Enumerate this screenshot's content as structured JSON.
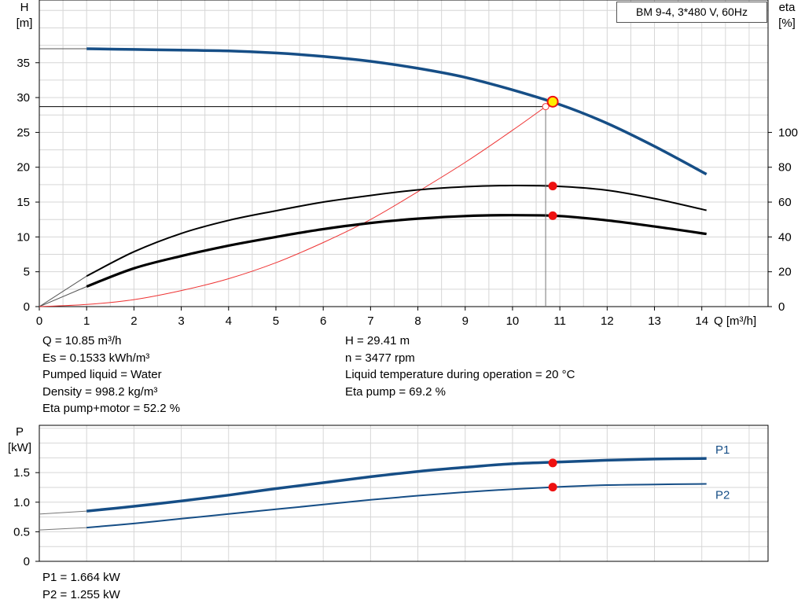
{
  "header": {
    "title": "BM 9-4, 3*480 V, 60Hz"
  },
  "colors": {
    "curve": "#164e86",
    "duty_point": "#ee1111",
    "duty_point_main": "#ffee00",
    "efficiency": "#000000",
    "es_curve": "#ee3333"
  },
  "main_info": {
    "left": [
      "Q = 10.85 m³/h",
      "Es = 0.1533 kWh/m³",
      "Pumped liquid = Water",
      "Density = 998.2 kg/m³",
      "Eta pump+motor = 52.2 %"
    ],
    "right": [
      "H = 29.41 m",
      "n = 3477 rpm",
      "Liquid temperature during operation = 20 °C",
      "Eta pump = 69.2 %"
    ]
  },
  "power_info": [
    "P1 = 1.664 kW",
    "P2 = 1.255 kW"
  ],
  "chart_data": [
    {
      "type": "line",
      "title": "BM 9-4, 3*480 V, 60Hz",
      "xlabel": "Q [m³/h]",
      "ylabel": "H\n[m]",
      "y2label": "eta\n[%]",
      "xlim": [
        0,
        15.4
      ],
      "ylim": [
        0,
        44
      ],
      "y2lim": [
        0,
        176
      ],
      "x_ticks": [
        0,
        1,
        2,
        3,
        4,
        5,
        6,
        7,
        8,
        9,
        10,
        11,
        12,
        13,
        14
      ],
      "y_ticks": [
        0,
        5,
        10,
        15,
        20,
        25,
        30,
        35
      ],
      "y2_ticks": [
        0,
        20,
        40,
        60,
        80,
        100
      ],
      "grid": true,
      "series": [
        {
          "axis": "left",
          "x": [
            1,
            2,
            3,
            4,
            5,
            6,
            7,
            8,
            9,
            10,
            11,
            12,
            13,
            14.1
          ],
          "values": [
            37.0,
            36.9,
            36.8,
            36.7,
            36.4,
            35.9,
            35.2,
            34.2,
            32.9,
            31.1,
            29.0,
            26.3,
            23.0,
            19.0
          ]
        },
        {
          "axis": "right",
          "x": [
            1,
            2,
            3,
            4,
            5,
            6,
            7,
            8,
            9,
            10,
            11,
            12,
            13,
            14.1
          ],
          "values": [
            17.5,
            31.5,
            42.0,
            49.5,
            55.0,
            60.0,
            63.8,
            67.0,
            68.8,
            69.5,
            69.0,
            66.8,
            62.0,
            55.3
          ]
        },
        {
          "axis": "right",
          "x": [
            1,
            2,
            3,
            4,
            5,
            6,
            7,
            8,
            9,
            10,
            11,
            12,
            13,
            14.1
          ],
          "values": [
            11.5,
            22.0,
            29.0,
            35.0,
            40.0,
            44.5,
            48.0,
            50.5,
            52.0,
            52.5,
            52.0,
            49.5,
            46.0,
            41.7
          ]
        },
        {
          "axis": "left",
          "x": [
            0,
            1,
            2,
            3,
            4,
            5,
            6,
            7,
            8,
            9,
            10,
            10.7
          ],
          "values": [
            0,
            0.3,
            1.0,
            2.3,
            4.0,
            6.3,
            9.2,
            12.5,
            16.5,
            20.7,
            25.3,
            28.7
          ]
        }
      ],
      "duty_point": {
        "x": 10.85,
        "h": 29.41,
        "eta_pump": 69.2,
        "eta_total": 52.2
      }
    },
    {
      "type": "line",
      "xlabel": "",
      "ylabel": "P\n[kW]",
      "xlim": [
        0,
        15.4
      ],
      "ylim": [
        0,
        2.3
      ],
      "y_ticks": [
        0,
        0.5,
        1.0,
        1.5
      ],
      "y_tick_labels": [
        "0",
        "0.5",
        "1.0",
        "1.5"
      ],
      "grid": true,
      "series": [
        {
          "name": "P1",
          "x": [
            0,
            1,
            2,
            3,
            4,
            5,
            6,
            7,
            8,
            9,
            10,
            11,
            12,
            13,
            14.1
          ],
          "values": [
            0.8,
            0.85,
            0.93,
            1.02,
            1.12,
            1.23,
            1.33,
            1.43,
            1.52,
            1.59,
            1.65,
            1.68,
            1.71,
            1.73,
            1.74
          ]
        },
        {
          "name": "P2",
          "x": [
            0,
            1,
            2,
            3,
            4,
            5,
            6,
            7,
            8,
            9,
            10,
            11,
            12,
            13,
            14.1
          ],
          "values": [
            0.53,
            0.57,
            0.64,
            0.72,
            0.8,
            0.88,
            0.96,
            1.04,
            1.11,
            1.17,
            1.22,
            1.26,
            1.29,
            1.3,
            1.31
          ]
        }
      ],
      "duty_point": {
        "x": 10.85,
        "p1": 1.664,
        "p2": 1.255
      }
    }
  ]
}
